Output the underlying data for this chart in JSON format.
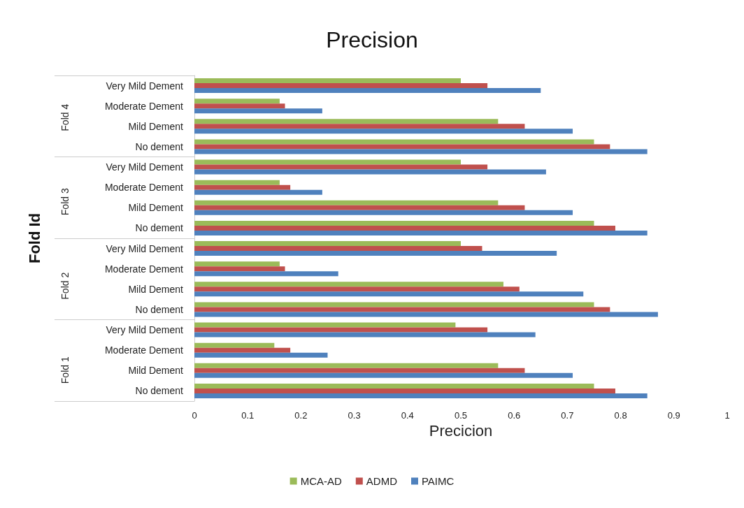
{
  "chart_data": {
    "type": "bar",
    "orientation": "horizontal",
    "title": "Precision",
    "xlabel": "Precicion",
    "ylabel": "Fold Id",
    "categories": [
      "Very Mild Dement",
      "Moderate Dement",
      "Mild Dement",
      "No dement",
      "Very Mild Dement",
      "Moderate Dement",
      "Mild Dement",
      "No dement",
      "Very Mild Dement",
      "Moderate Dement",
      "Mild Dement",
      "No dement",
      "Very Mild Dement",
      "Moderate Dement",
      "Mild Dement",
      "No dement"
    ],
    "annotations": [
      "Fold 4",
      "Fold 3",
      "Fold 2",
      "Fold 1"
    ],
    "series": [
      {
        "name": "MCA-AD",
        "color": "#9bbb59",
        "values": [
          0.5,
          0.16,
          0.57,
          0.75,
          0.5,
          0.16,
          0.57,
          0.75,
          0.5,
          0.16,
          0.58,
          0.75,
          0.49,
          0.15,
          0.57,
          0.75
        ]
      },
      {
        "name": "ADMD",
        "color": "#c0504d",
        "values": [
          0.55,
          0.17,
          0.62,
          0.78,
          0.55,
          0.18,
          0.62,
          0.79,
          0.54,
          0.17,
          0.61,
          0.78,
          0.55,
          0.18,
          0.62,
          0.79
        ]
      },
      {
        "name": "PAIMC",
        "color": "#4f81bd",
        "values": [
          0.65,
          0.24,
          0.71,
          0.85,
          0.66,
          0.24,
          0.71,
          0.85,
          0.68,
          0.27,
          0.73,
          0.87,
          0.64,
          0.25,
          0.71,
          0.85
        ]
      }
    ],
    "xlim": [
      0,
      1
    ],
    "xticks": [
      0,
      0.1,
      0.2,
      0.3,
      0.4,
      0.5,
      0.6,
      0.7,
      0.8,
      0.9,
      1
    ],
    "grid": false,
    "legend": "bottom"
  }
}
